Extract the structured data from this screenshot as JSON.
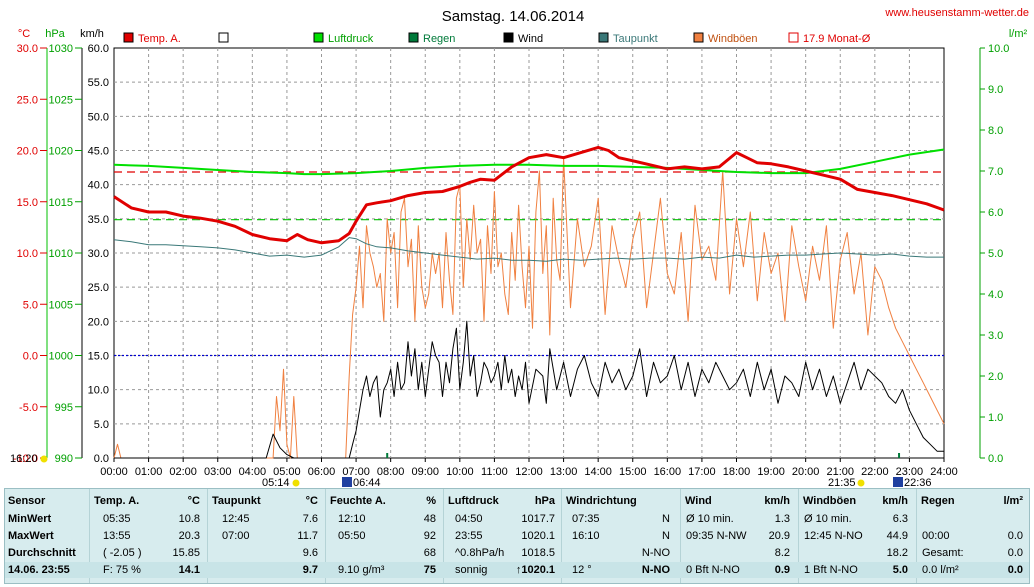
{
  "title": "Samstag. 14.06.2014",
  "site": "www.heusenstamm-wetter.de",
  "axis_units": {
    "temp": "°C",
    "pressure": "hPa",
    "wind": "km/h",
    "rain": "l/m²"
  },
  "legend": [
    {
      "label": "Temp. A.",
      "color": "#e00000",
      "kind": "fill"
    },
    {
      "label": "",
      "color": "#ffffff",
      "kind": "fill"
    },
    {
      "label": "Luftdruck",
      "color": "#00e000",
      "kind": "fill"
    },
    {
      "label": "Regen",
      "color": "#007a3a",
      "kind": "fill"
    },
    {
      "label": "Wind",
      "color": "#000000",
      "kind": "fill"
    },
    {
      "label": "Taupunkt",
      "color": "#3a7878",
      "kind": "fill"
    },
    {
      "label": "Windböen",
      "color": "#f08040",
      "kind": "fill"
    },
    {
      "label": "17.9 Monat-Ø",
      "color": "#e00000",
      "kind": "outline"
    }
  ],
  "sun": {
    "left_time": "16:20",
    "sunrise": "05:14",
    "moonset": "06:44",
    "moonrise": "21:35",
    "sunset": "22:36"
  },
  "chart_data": {
    "type": "line",
    "x_unit": "hour",
    "xlim": [
      0,
      24
    ],
    "x_ticks": [
      "00:00",
      "01:00",
      "02:00",
      "03:00",
      "04:00",
      "05:00",
      "06:00",
      "07:00",
      "08:00",
      "09:00",
      "10:00",
      "11:00",
      "12:00",
      "13:00",
      "14:00",
      "15:00",
      "16:00",
      "17:00",
      "18:00",
      "19:00",
      "20:00",
      "21:00",
      "22:00",
      "23:00",
      "24:00"
    ],
    "axes": {
      "temp": {
        "label": "°C",
        "ylim": [
          -10,
          30
        ],
        "ticks": [
          "30.0",
          "25.0",
          "20.0",
          "15.0",
          "10.0",
          "5.0",
          "0.0",
          "-5.0",
          "-10.0"
        ]
      },
      "pressure": {
        "label": "hPa",
        "ylim": [
          990,
          1030
        ],
        "ticks": [
          "1030",
          "1025",
          "1020",
          "1015",
          "1010",
          "1005",
          "1000",
          "995",
          "990"
        ]
      },
      "wind": {
        "label": "km/h",
        "ylim": [
          0,
          60
        ],
        "ticks": [
          "60.0",
          "55.0",
          "50.0",
          "45.0",
          "40.0",
          "35.0",
          "30.0",
          "25.0",
          "20.0",
          "15.0",
          "10.0",
          "5.0",
          "0.0"
        ]
      },
      "rain": {
        "label": "l/m²",
        "ylim": [
          0,
          10
        ],
        "ticks": [
          "10.0",
          "9.0",
          "8.0",
          "7.0",
          "6.0",
          "5.0",
          "4.0",
          "3.0",
          "2.0",
          "1.0",
          "0.0"
        ]
      }
    },
    "reference_lines": [
      {
        "name": "17.9 Monat-Ø",
        "axis": "temp",
        "value": 17.9,
        "color": "#e00000",
        "dash": "8,5"
      },
      {
        "axis": "temp",
        "value": 0,
        "color": "#0000d0",
        "dash": "2,2"
      },
      {
        "axis": "pressure",
        "value": 1013.25,
        "color": "#00c000",
        "dash": "8,5"
      }
    ],
    "series": [
      {
        "name": "Temp. A.",
        "axis": "temp",
        "color": "#e00000",
        "width": 3,
        "x": [
          0,
          0.5,
          1,
          1.5,
          2,
          2.5,
          3,
          3.5,
          4,
          4.5,
          5,
          5.3,
          5.6,
          6,
          6.5,
          6.8,
          7,
          7.3,
          7.6,
          8,
          8.5,
          9,
          9.5,
          10,
          10.3,
          10.6,
          11,
          11.5,
          12,
          12.5,
          13,
          13.5,
          14,
          14.3,
          14.6,
          15,
          15.5,
          16,
          16.5,
          17,
          17.5,
          18,
          18.3,
          18.6,
          19,
          19.5,
          20,
          20.5,
          21,
          21.5,
          22,
          22.5,
          23,
          23.5,
          24
        ],
        "y": [
          15.5,
          14.4,
          14.0,
          14.0,
          13.6,
          13.4,
          13.1,
          12.6,
          11.8,
          11.4,
          11.2,
          11.8,
          11.3,
          11.0,
          11.2,
          11.9,
          13.1,
          14.7,
          14.9,
          15.1,
          15.6,
          15.9,
          16.0,
          16.5,
          16.9,
          17.2,
          17.1,
          18.4,
          19.3,
          19.6,
          19.3,
          19.8,
          20.3,
          20.0,
          19.3,
          19.0,
          18.6,
          18.2,
          18.4,
          18.2,
          18.4,
          19.8,
          19.3,
          18.8,
          18.7,
          18.4,
          18.0,
          17.6,
          17.2,
          16.2,
          15.9,
          15.6,
          15.2,
          14.8,
          14.2
        ]
      },
      {
        "name": "Luftdruck",
        "axis": "pressure",
        "color": "#00e000",
        "width": 2,
        "x": [
          0,
          1,
          2,
          3,
          4,
          5,
          5.5,
          6,
          7,
          8,
          9,
          10,
          11,
          12,
          13,
          14,
          15,
          16,
          17,
          18,
          19,
          20,
          21,
          22,
          23,
          24
        ],
        "y": [
          1018.6,
          1018.5,
          1018.3,
          1018.1,
          1017.9,
          1017.8,
          1017.7,
          1017.7,
          1017.8,
          1018.0,
          1018.3,
          1018.5,
          1018.6,
          1018.6,
          1018.5,
          1018.5,
          1018.4,
          1018.3,
          1018.1,
          1017.9,
          1017.8,
          1017.8,
          1018.2,
          1018.9,
          1019.6,
          1020.1
        ]
      },
      {
        "name": "Taupunkt",
        "axis": "temp",
        "color": "#3a7878",
        "width": 1,
        "x": [
          0,
          0.5,
          1,
          1.5,
          2,
          2.5,
          3,
          3.5,
          4,
          4.5,
          5,
          5.5,
          6,
          6.5,
          6.8,
          7,
          7.3,
          7.6,
          8,
          8.5,
          9,
          9.5,
          10,
          10.5,
          11,
          11.5,
          12,
          12.5,
          13,
          13.5,
          14,
          14.5,
          15,
          15.5,
          16,
          16.5,
          17,
          17.5,
          18,
          18.5,
          19,
          19.5,
          20,
          20.5,
          21,
          21.5,
          22,
          22.5,
          23,
          23.5,
          24
        ],
        "y": [
          11.3,
          11.1,
          10.8,
          10.8,
          10.7,
          10.6,
          10.5,
          10.3,
          10.0,
          9.7,
          9.8,
          9.6,
          9.8,
          10.6,
          11.5,
          11.4,
          10.9,
          10.6,
          10.5,
          10.2,
          10.0,
          9.8,
          9.6,
          9.4,
          9.5,
          9.3,
          9.3,
          9.2,
          9.4,
          9.3,
          9.4,
          9.5,
          9.4,
          9.5,
          9.5,
          9.4,
          9.6,
          9.5,
          9.8,
          9.6,
          9.7,
          9.8,
          9.8,
          9.9,
          10.0,
          9.9,
          9.8,
          9.9,
          9.7,
          9.6,
          9.6
        ]
      },
      {
        "name": "Wind",
        "axis": "wind",
        "color": "#000000",
        "width": 1,
        "x": [
          0,
          4.4,
          4.6,
          4.8,
          5.0,
          5.2,
          5.4,
          6.8,
          6.9,
          7.0,
          7.1,
          7.2,
          7.3,
          7.4,
          7.5,
          7.6,
          7.7,
          7.8,
          7.9,
          8.0,
          8.1,
          8.2,
          8.3,
          8.4,
          8.5,
          8.6,
          8.7,
          8.8,
          8.9,
          9.0,
          9.1,
          9.2,
          9.3,
          9.4,
          9.5,
          9.6,
          9.7,
          9.8,
          9.9,
          10.0,
          10.1,
          10.2,
          10.3,
          10.4,
          10.5,
          10.6,
          10.7,
          10.8,
          10.9,
          11.0,
          11.1,
          11.2,
          11.3,
          11.4,
          11.5,
          11.6,
          11.7,
          11.8,
          11.9,
          12.0,
          12.2,
          12.4,
          12.5,
          12.6,
          12.8,
          13.0,
          13.2,
          13.4,
          13.6,
          13.8,
          14.0,
          14.2,
          14.4,
          14.6,
          14.8,
          15.0,
          15.2,
          15.4,
          15.6,
          15.8,
          16.0,
          16.2,
          16.4,
          16.6,
          16.8,
          17.0,
          17.2,
          17.4,
          17.6,
          17.8,
          18.0,
          18.2,
          18.4,
          18.6,
          18.8,
          19.0,
          19.2,
          19.4,
          19.6,
          19.8,
          20.0,
          20.2,
          20.4,
          20.6,
          20.8,
          21.0,
          21.2,
          21.4,
          21.6,
          21.8,
          22.0,
          22.2,
          22.4,
          22.6,
          22.8,
          23.0,
          23.2,
          23.4,
          23.6,
          23.8,
          24.0
        ],
        "y": [
          0,
          0,
          3.5,
          1.5,
          0.5,
          0,
          0,
          0,
          2,
          4,
          7,
          10,
          12,
          9,
          11,
          12,
          6,
          10,
          11,
          13,
          9,
          14,
          10,
          11,
          17,
          12,
          16,
          10,
          14,
          9,
          13,
          17,
          15,
          14,
          9,
          14,
          11,
          16,
          19,
          10,
          14,
          20,
          12,
          15,
          9,
          11,
          14,
          13,
          11,
          12,
          14,
          10,
          15,
          11,
          13,
          9,
          12,
          10,
          14,
          8,
          13,
          12,
          8,
          16,
          10,
          14,
          9,
          13,
          15,
          11,
          9,
          14,
          11,
          13,
          10,
          12,
          16,
          9,
          14,
          11,
          12,
          15,
          10,
          14,
          9,
          13,
          11,
          14,
          12,
          10,
          11,
          13,
          9,
          14,
          10,
          13,
          8,
          12,
          11,
          9,
          14,
          10,
          13,
          9,
          12,
          8,
          11,
          14,
          10,
          13,
          12,
          11,
          9,
          8,
          10,
          7,
          5,
          3,
          2,
          1,
          1
        ]
      },
      {
        "name": "Windböen",
        "axis": "wind",
        "color": "#f08040",
        "width": 1,
        "x": [
          0,
          0.1,
          0.2,
          0.3,
          4.6,
          4.7,
          4.8,
          4.9,
          5.0,
          5.1,
          5.2,
          5.3,
          5.4,
          6.7,
          6.8,
          6.9,
          7.0,
          7.1,
          7.2,
          7.3,
          7.4,
          7.5,
          7.6,
          7.7,
          7.8,
          7.9,
          8.0,
          8.1,
          8.2,
          8.3,
          8.4,
          8.5,
          8.6,
          8.7,
          8.8,
          8.9,
          9.0,
          9.1,
          9.2,
          9.3,
          9.4,
          9.5,
          9.6,
          9.7,
          9.8,
          9.9,
          10.0,
          10.1,
          10.2,
          10.3,
          10.4,
          10.5,
          10.6,
          10.7,
          10.8,
          10.9,
          11.0,
          11.1,
          11.2,
          11.3,
          11.4,
          11.5,
          11.6,
          11.7,
          11.8,
          11.9,
          12.0,
          12.1,
          12.2,
          12.3,
          12.4,
          12.5,
          12.6,
          12.7,
          12.8,
          12.9,
          13.0,
          13.2,
          13.4,
          13.6,
          13.8,
          14.0,
          14.2,
          14.4,
          14.6,
          14.8,
          15.0,
          15.2,
          15.4,
          15.6,
          15.8,
          16.0,
          16.2,
          16.4,
          16.6,
          16.8,
          17.0,
          17.2,
          17.4,
          17.6,
          17.8,
          18.0,
          18.2,
          18.4,
          18.6,
          18.8,
          19.0,
          19.2,
          19.4,
          19.6,
          19.8,
          20.0,
          20.2,
          20.4,
          20.6,
          20.8,
          21.0,
          21.2,
          21.4,
          21.6,
          21.8,
          22.0,
          22.2,
          22.4,
          22.6,
          22.8,
          23.0,
          23.2,
          23.4,
          23.6,
          23.8,
          24.0
        ],
        "y": [
          0,
          2,
          0,
          0,
          0,
          9,
          4,
          13,
          2,
          0,
          9,
          0,
          0,
          0,
          12,
          21,
          25,
          31,
          22,
          34,
          30,
          28,
          25,
          27,
          20,
          35,
          30,
          33,
          22,
          36,
          38,
          28,
          32,
          20,
          34,
          25,
          22,
          24,
          30,
          27,
          30,
          22,
          33,
          26,
          21,
          38,
          40,
          25,
          35,
          29,
          37,
          30,
          32,
          20,
          34,
          27,
          39,
          28,
          30,
          24,
          21,
          33,
          26,
          37,
          28,
          22,
          31,
          19,
          36,
          42,
          27,
          34,
          18,
          38,
          29,
          26,
          44,
          22,
          35,
          28,
          31,
          38,
          21,
          34,
          29,
          25,
          32,
          36,
          22,
          30,
          38,
          27,
          24,
          33,
          20,
          37,
          29,
          31,
          26,
          42,
          24,
          35,
          28,
          36,
          23,
          33,
          27,
          30,
          20,
          34,
          28,
          23,
          31,
          26,
          34,
          19,
          29,
          33,
          24,
          30,
          18,
          28,
          26,
          22,
          19,
          17,
          15,
          13,
          11,
          9,
          7,
          5
        ]
      }
    ],
    "rain_markers": {
      "axis": "rain",
      "x": [
        7.9,
        22.7
      ],
      "value": 0
    }
  },
  "table": {
    "cols": [
      {
        "h1": "Sensor",
        "h2": ""
      },
      {
        "h1": "Temp. A.",
        "h2": "°C"
      },
      {
        "h1": "Taupunkt",
        "h2": "°C"
      },
      {
        "h1": "Feuchte A.",
        "h2": "%"
      },
      {
        "h1": "Luftdruck",
        "h2": "hPa"
      },
      {
        "h1": "Windrichtung",
        "h2": ""
      },
      {
        "h1": "Wind",
        "h2": "km/h"
      },
      {
        "h1": "Windböen",
        "h2": "km/h"
      },
      {
        "h1": "Regen",
        "h2": "l/m²"
      }
    ],
    "rows": [
      {
        "label": "MinWert",
        "cells": [
          [
            "05:35",
            "10.8"
          ],
          [
            "12:45",
            "7.6"
          ],
          [
            "12:10",
            "48"
          ],
          [
            "04:50",
            "1017.7"
          ],
          [
            "07:35",
            "N"
          ],
          [
            "Ø 10 min.",
            "1.3"
          ],
          [
            "Ø 10 min.",
            "6.3"
          ],
          [
            "",
            ""
          ]
        ]
      },
      {
        "label": "MaxWert",
        "cells": [
          [
            "13:55",
            "20.3"
          ],
          [
            "07:00",
            "11.7"
          ],
          [
            "05:50",
            "92"
          ],
          [
            "23:55",
            "1020.1"
          ],
          [
            "16:10",
            "N"
          ],
          [
            "09:35  N-NW",
            "20.9"
          ],
          [
            "12:45     N-NO",
            "44.9"
          ],
          [
            "00:00",
            "0.0"
          ]
        ]
      },
      {
        "label": "Durchschnitt",
        "cells": [
          [
            "( -2.05 )",
            "15.85"
          ],
          [
            "",
            "9.6"
          ],
          [
            "",
            "68"
          ],
          [
            "^0.8hPa/h",
            "1018.5"
          ],
          [
            "",
            "N-NO"
          ],
          [
            "",
            "8.2"
          ],
          [
            "",
            "18.2"
          ],
          [
            "Gesamt:",
            "0.0"
          ]
        ]
      },
      {
        "label": "14.06.  23:55",
        "cells": [
          [
            "F: 75 %",
            "14.1"
          ],
          [
            "",
            "9.7"
          ],
          [
            "9.10 g/m³",
            "75"
          ],
          [
            "sonnig",
            "↑1020.1"
          ],
          [
            "12 °",
            "N-NO"
          ],
          [
            "0 Bft N-NO",
            "0.9"
          ],
          [
            "1 Bft N-NO",
            "5.0"
          ],
          [
            "0.0 l/m²",
            "0.0"
          ]
        ]
      }
    ]
  }
}
